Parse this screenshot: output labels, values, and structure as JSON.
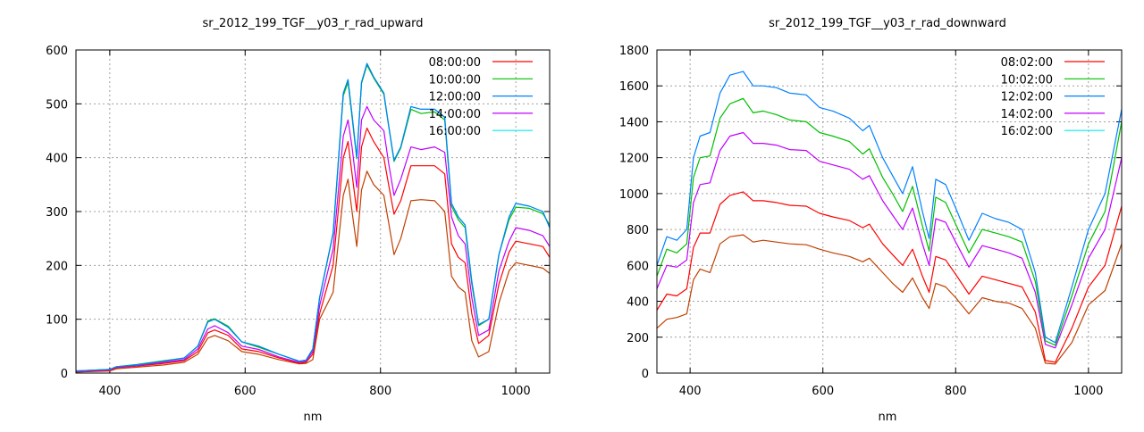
{
  "chart_data": [
    {
      "type": "line",
      "title": "sr_2012_199_TGF__y03_r_rad_upward",
      "xlabel": "nm",
      "ylabel": "",
      "xlim": [
        350,
        1050
      ],
      "ylim": [
        0,
        600
      ],
      "xticks": [
        400,
        600,
        800,
        1000
      ],
      "yticks": [
        0,
        100,
        200,
        300,
        400,
        500,
        600
      ],
      "grid": true,
      "legend_position": "top-right",
      "x": [
        350,
        400,
        410,
        440,
        480,
        510,
        530,
        545,
        555,
        575,
        595,
        620,
        650,
        680,
        690,
        700,
        710,
        730,
        745,
        752,
        758,
        765,
        772,
        780,
        790,
        805,
        812,
        820,
        830,
        845,
        860,
        880,
        895,
        905,
        915,
        925,
        935,
        945,
        960,
        975,
        990,
        1000,
        1020,
        1040,
        1050
      ],
      "series": [
        {
          "name": "16:00:00",
          "color": "#00eeee",
          "values": [
            4,
            7,
            12,
            15,
            22,
            28,
            50,
            95,
            100,
            85,
            58,
            50,
            35,
            22,
            24,
            45,
            140,
            260,
            520,
            545,
            480,
            400,
            540,
            575,
            550,
            520,
            460,
            395,
            420,
            495,
            490,
            490,
            475,
            315,
            290,
            275,
            170,
            90,
            100,
            220,
            290,
            315,
            310,
            300,
            270
          ]
        },
        {
          "name": "",
          "color": "#c04000",
          "values": [
            2,
            4,
            8,
            11,
            15,
            20,
            35,
            65,
            70,
            60,
            40,
            35,
            25,
            17,
            18,
            25,
            100,
            150,
            330,
            360,
            300,
            235,
            340,
            375,
            350,
            330,
            280,
            220,
            250,
            320,
            322,
            320,
            300,
            180,
            160,
            150,
            60,
            30,
            40,
            130,
            190,
            205,
            200,
            195,
            185
          ]
        },
        {
          "name": "08:00:00",
          "color": "#ff0000",
          "values": [
            2,
            5,
            10,
            13,
            18,
            23,
            40,
            75,
            80,
            70,
            45,
            40,
            28,
            18,
            20,
            35,
            110,
            200,
            400,
            430,
            370,
            300,
            420,
            455,
            430,
            400,
            350,
            295,
            320,
            385,
            385,
            385,
            370,
            240,
            215,
            205,
            110,
            55,
            70,
            165,
            225,
            245,
            240,
            235,
            215
          ]
        },
        {
          "name": "14:00:00",
          "color": "#c000ff",
          "values": [
            3,
            6,
            11,
            14,
            20,
            25,
            45,
            82,
            88,
            75,
            50,
            44,
            30,
            20,
            22,
            40,
            125,
            230,
            440,
            470,
            420,
            345,
            470,
            495,
            470,
            450,
            390,
            330,
            360,
            420,
            415,
            420,
            410,
            290,
            255,
            240,
            140,
            70,
            80,
            190,
            245,
            270,
            265,
            255,
            235
          ]
        },
        {
          "name": "10:00:00",
          "color": "#00c000",
          "values": [
            4,
            7,
            12,
            16,
            23,
            28,
            50,
            97,
            101,
            87,
            58,
            48,
            35,
            22,
            24,
            45,
            140,
            258,
            515,
            540,
            475,
            398,
            538,
            572,
            548,
            518,
            460,
            393,
            418,
            490,
            482,
            485,
            470,
            310,
            285,
            270,
            165,
            88,
            100,
            220,
            285,
            308,
            306,
            296,
            275
          ]
        },
        {
          "name": "12:00:00",
          "color": "#0080ff",
          "values": [
            4,
            7,
            12,
            15,
            22,
            28,
            50,
            95,
            100,
            85,
            58,
            50,
            35,
            22,
            24,
            45,
            140,
            260,
            520,
            545,
            480,
            400,
            540,
            575,
            550,
            520,
            460,
            395,
            420,
            495,
            490,
            490,
            475,
            315,
            290,
            275,
            170,
            90,
            100,
            220,
            290,
            315,
            310,
            300,
            270
          ]
        }
      ],
      "legend": [
        {
          "label": "08:00:00",
          "color": "#ff0000"
        },
        {
          "label": "10:00:00",
          "color": "#00c000"
        },
        {
          "label": "12:00:00",
          "color": "#0080ff"
        },
        {
          "label": "14:00:00",
          "color": "#c000ff"
        },
        {
          "label": "16:00:00",
          "color": "#00eeee"
        }
      ]
    },
    {
      "type": "line",
      "title": "sr_2012_199_TGF__y03_r_rad_downward",
      "xlabel": "nm",
      "ylabel": "",
      "xlim": [
        350,
        1050
      ],
      "ylim": [
        0,
        1800
      ],
      "xticks": [
        400,
        600,
        800,
        1000
      ],
      "yticks": [
        0,
        200,
        400,
        600,
        800,
        1000,
        1200,
        1400,
        1600,
        1800
      ],
      "grid": true,
      "legend_position": "top-right",
      "x": [
        350,
        365,
        380,
        395,
        405,
        415,
        430,
        445,
        460,
        480,
        495,
        510,
        530,
        550,
        575,
        595,
        615,
        640,
        660,
        670,
        690,
        705,
        720,
        735,
        750,
        760,
        770,
        785,
        800,
        820,
        840,
        860,
        880,
        900,
        920,
        935,
        950,
        975,
        1000,
        1025,
        1050
      ],
      "series": [
        {
          "name": "",
          "color": "#c04000",
          "values": [
            250,
            300,
            310,
            330,
            520,
            580,
            560,
            720,
            760,
            770,
            730,
            740,
            730,
            720,
            715,
            690,
            670,
            650,
            620,
            640,
            560,
            500,
            450,
            530,
            420,
            360,
            500,
            480,
            420,
            330,
            420,
            400,
            390,
            360,
            250,
            55,
            50,
            170,
            380,
            460,
            720
          ]
        },
        {
          "name": "08:02:00",
          "color": "#ff0000",
          "values": [
            350,
            440,
            430,
            470,
            700,
            780,
            780,
            940,
            990,
            1010,
            960,
            960,
            950,
            935,
            930,
            890,
            870,
            850,
            810,
            830,
            720,
            660,
            600,
            690,
            540,
            450,
            650,
            630,
            550,
            440,
            540,
            520,
            500,
            480,
            340,
            70,
            60,
            250,
            480,
            600,
            930
          ]
        },
        {
          "name": "14:02:00",
          "color": "#c000ff",
          "values": [
            470,
            600,
            590,
            630,
            950,
            1050,
            1060,
            1240,
            1320,
            1340,
            1280,
            1280,
            1270,
            1245,
            1240,
            1180,
            1160,
            1135,
            1080,
            1100,
            960,
            880,
            800,
            920,
            720,
            600,
            860,
            840,
            730,
            590,
            710,
            690,
            670,
            640,
            450,
            160,
            140,
            380,
            640,
            800,
            1200
          ]
        },
        {
          "name": "10:02:00",
          "color": "#00c000",
          "values": [
            540,
            690,
            670,
            720,
            1090,
            1200,
            1210,
            1420,
            1500,
            1530,
            1450,
            1460,
            1440,
            1410,
            1400,
            1340,
            1320,
            1290,
            1220,
            1250,
            1090,
            1000,
            900,
            1040,
            820,
            680,
            980,
            950,
            830,
            670,
            800,
            780,
            760,
            730,
            510,
            180,
            155,
            430,
            720,
            900,
            1400
          ]
        },
        {
          "name": "12:02:00",
          "color": "#0080ff",
          "values": [
            600,
            760,
            740,
            800,
            1200,
            1320,
            1340,
            1560,
            1660,
            1680,
            1600,
            1600,
            1590,
            1560,
            1550,
            1480,
            1460,
            1420,
            1350,
            1380,
            1200,
            1100,
            1000,
            1150,
            900,
            750,
            1080,
            1050,
            920,
            740,
            890,
            860,
            840,
            800,
            560,
            200,
            170,
            480,
            800,
            1000,
            1470
          ]
        }
      ],
      "legend": [
        {
          "label": "08:02:00",
          "color": "#ff0000"
        },
        {
          "label": "10:02:00",
          "color": "#00c000"
        },
        {
          "label": "12:02:00",
          "color": "#0080ff"
        },
        {
          "label": "14:02:00",
          "color": "#c000ff"
        },
        {
          "label": "16:02:00",
          "color": "#00eeee"
        }
      ]
    }
  ]
}
